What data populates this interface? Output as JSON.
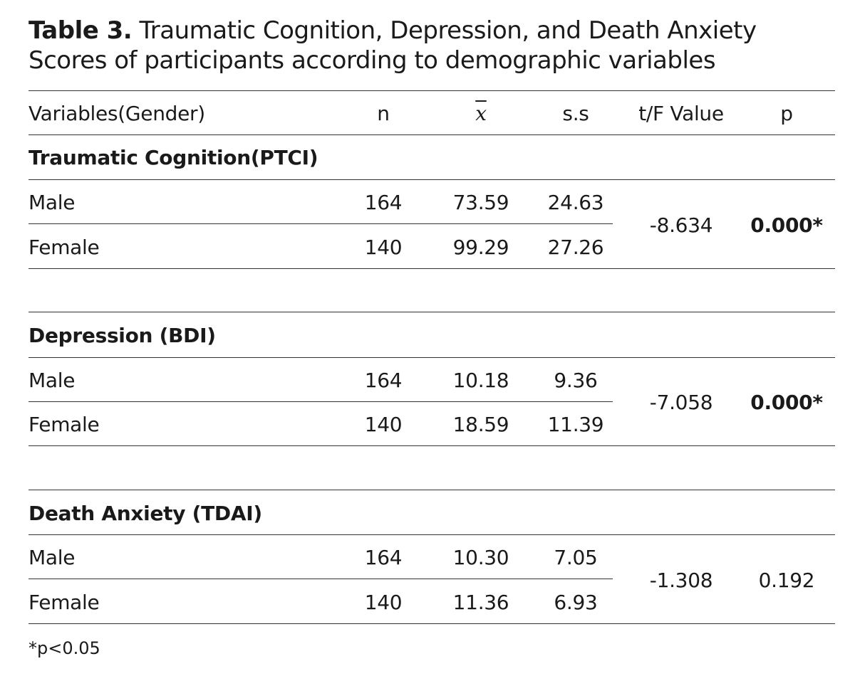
{
  "caption": {
    "label": "Table 3.",
    "text": "Traumatic Cognition, Depression, and Death Anxiety Scores of participants according to demographic variables"
  },
  "table": {
    "headers": [
      "Variables(Gender)",
      "n",
      "x",
      "s.s",
      "t/F Value",
      "p"
    ],
    "sections": [
      {
        "title": "Traumatic Cognition(PTCI)",
        "rows": [
          {
            "label": "Male",
            "n": "164",
            "mean": "73.59",
            "ss": "24.63"
          },
          {
            "label": "Female",
            "n": "140",
            "mean": "99.29",
            "ss": "27.26"
          }
        ],
        "tf": "-8.634",
        "p": "0.000*",
        "significant": true
      },
      {
        "title": "Depression (BDI)",
        "rows": [
          {
            "label": "Male",
            "n": "164",
            "mean": "10.18",
            "ss": "9.36"
          },
          {
            "label": "Female",
            "n": "140",
            "mean": "18.59",
            "ss": "11.39"
          }
        ],
        "tf": "-7.058",
        "p": "0.000*",
        "significant": true
      },
      {
        "title": "Death Anxiety (TDAI)",
        "rows": [
          {
            "label": "Male",
            "n": "164",
            "mean": "10.30",
            "ss": "7.05"
          },
          {
            "label": "Female",
            "n": "140",
            "mean": "11.36",
            "ss": "6.93"
          }
        ],
        "tf": "-1.308",
        "p": "0.192",
        "significant": false
      }
    ]
  },
  "footnote": "*p<0.05"
}
